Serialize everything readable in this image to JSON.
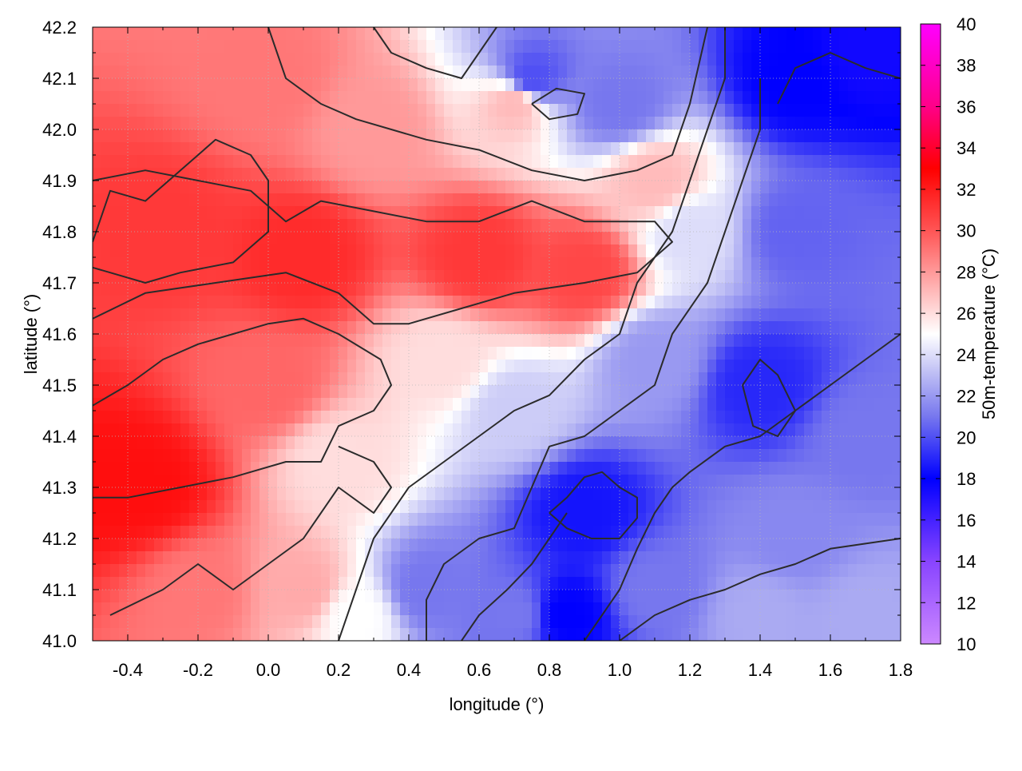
{
  "chart_data": {
    "type": "heatmap",
    "title": "",
    "xlabel": "longitude (°)",
    "ylabel": "latitude (°)",
    "colorbar_label": "50m-temperature (°C)",
    "xlim": [
      -0.5,
      1.8
    ],
    "ylim": [
      41.0,
      42.2
    ],
    "x_ticks": [
      "-0.4",
      "-0.2",
      "0.0",
      "0.2",
      "0.4",
      "0.6",
      "0.8",
      "1.0",
      "1.2",
      "1.4",
      "1.6",
      "1.8"
    ],
    "y_ticks": [
      "41.0",
      "41.1",
      "41.2",
      "41.3",
      "41.4",
      "41.5",
      "41.6",
      "41.7",
      "41.8",
      "41.9",
      "42.0",
      "42.1",
      "42.2"
    ],
    "colorbar_range": [
      10,
      40
    ],
    "colorbar_ticks": [
      "10",
      "12",
      "14",
      "16",
      "18",
      "20",
      "22",
      "24",
      "26",
      "28",
      "30",
      "32",
      "34",
      "36",
      "38",
      "40"
    ],
    "colormap": [
      {
        "value": 10,
        "color": "#cc88ff"
      },
      {
        "value": 14,
        "color": "#8844ff"
      },
      {
        "value": 18,
        "color": "#0000ff"
      },
      {
        "value": 21,
        "color": "#7777ee"
      },
      {
        "value": 23,
        "color": "#bbbbf4"
      },
      {
        "value": 25,
        "color": "#ffffff"
      },
      {
        "value": 27,
        "color": "#ffbbbb"
      },
      {
        "value": 30,
        "color": "#ff5555"
      },
      {
        "value": 33,
        "color": "#ff0000"
      },
      {
        "value": 36,
        "color": "#ff0088"
      },
      {
        "value": 40,
        "color": "#ff00ff"
      }
    ],
    "grid": true,
    "contour_interval": 2,
    "temperature_samples": [
      {
        "lon": -0.45,
        "lat": 41.3,
        "value": 32.5
      },
      {
        "lon": -0.35,
        "lat": 41.3,
        "value": 32.5
      },
      {
        "lon": -0.3,
        "lat": 41.8,
        "value": 31
      },
      {
        "lon": 0.1,
        "lat": 41.75,
        "value": 31.5
      },
      {
        "lon": 0.6,
        "lat": 41.75,
        "value": 31
      },
      {
        "lon": 0.9,
        "lat": 41.72,
        "value": 30.5
      },
      {
        "lon": 0.0,
        "lat": 41.5,
        "value": 29.5
      },
      {
        "lon": -0.2,
        "lat": 41.1,
        "value": 29
      },
      {
        "lon": 0.1,
        "lat": 41.1,
        "value": 27.5
      },
      {
        "lon": 0.2,
        "lat": 41.35,
        "value": 26
      },
      {
        "lon": 0.25,
        "lat": 41.05,
        "value": 25
      },
      {
        "lon": 0.45,
        "lat": 41.1,
        "value": 21
      },
      {
        "lon": 0.5,
        "lat": 41.55,
        "value": 26
      },
      {
        "lon": 0.7,
        "lat": 41.45,
        "value": 23.5
      },
      {
        "lon": 0.7,
        "lat": 41.05,
        "value": 21
      },
      {
        "lon": 0.9,
        "lat": 41.25,
        "value": 18.5
      },
      {
        "lon": 0.85,
        "lat": 41.05,
        "value": 18
      },
      {
        "lon": 0.3,
        "lat": 42.0,
        "value": 28
      },
      {
        "lon": 0.0,
        "lat": 42.1,
        "value": 29
      },
      {
        "lon": 0.7,
        "lat": 42.05,
        "value": 27
      },
      {
        "lon": 0.75,
        "lat": 42.1,
        "value": 20
      },
      {
        "lon": 1.0,
        "lat": 42.05,
        "value": 21
      },
      {
        "lon": 1.1,
        "lat": 41.9,
        "value": 27
      },
      {
        "lon": 1.2,
        "lat": 41.8,
        "value": 24
      },
      {
        "lon": 1.1,
        "lat": 41.55,
        "value": 22
      },
      {
        "lon": 1.4,
        "lat": 41.5,
        "value": 19
      },
      {
        "lon": 1.5,
        "lat": 41.8,
        "value": 20.5
      },
      {
        "lon": 1.5,
        "lat": 42.1,
        "value": 18
      },
      {
        "lon": 1.7,
        "lat": 42.15,
        "value": 17.5
      },
      {
        "lon": 1.5,
        "lat": 41.2,
        "value": 21.5
      },
      {
        "lon": 1.4,
        "lat": 41.05,
        "value": 22.5
      },
      {
        "lon": 1.7,
        "lat": 41.05,
        "value": 22.5
      },
      {
        "lon": 1.7,
        "lat": 41.4,
        "value": 21
      },
      {
        "lon": 1.1,
        "lat": 41.1,
        "value": 21
      }
    ],
    "contours": [
      [
        [
          -0.5,
          41.78
        ],
        [
          -0.45,
          41.88
        ],
        [
          -0.35,
          41.86
        ],
        [
          -0.25,
          41.92
        ],
        [
          -0.15,
          41.98
        ],
        [
          -0.05,
          41.95
        ],
        [
          0.0,
          41.9
        ],
        [
          0.0,
          41.8
        ],
        [
          -0.1,
          41.74
        ],
        [
          -0.25,
          41.72
        ],
        [
          -0.35,
          41.7
        ],
        [
          -0.45,
          41.72
        ],
        [
          -0.5,
          41.73
        ]
      ],
      [
        [
          -0.5,
          41.46
        ],
        [
          -0.4,
          41.5
        ],
        [
          -0.3,
          41.55
        ],
        [
          -0.2,
          41.58
        ],
        [
          -0.1,
          41.6
        ],
        [
          0.0,
          41.62
        ],
        [
          0.1,
          41.63
        ],
        [
          0.2,
          41.6
        ],
        [
          0.32,
          41.55
        ],
        [
          0.35,
          41.5
        ],
        [
          0.3,
          41.45
        ],
        [
          0.2,
          41.42
        ],
        [
          0.15,
          41.35
        ],
        [
          0.05,
          41.35
        ],
        [
          -0.1,
          41.32
        ],
        [
          -0.25,
          41.3
        ],
        [
          -0.4,
          41.28
        ],
        [
          -0.5,
          41.28
        ]
      ],
      [
        [
          -0.5,
          41.63
        ],
        [
          -0.35,
          41.68
        ],
        [
          -0.15,
          41.7
        ],
        [
          0.05,
          41.72
        ],
        [
          0.2,
          41.68
        ],
        [
          0.3,
          41.62
        ],
        [
          0.4,
          41.62
        ],
        [
          0.55,
          41.65
        ],
        [
          0.7,
          41.68
        ],
        [
          0.9,
          41.7
        ],
        [
          1.05,
          41.72
        ],
        [
          1.15,
          41.78
        ],
        [
          1.1,
          41.82
        ],
        [
          0.9,
          41.82
        ],
        [
          0.75,
          41.86
        ],
        [
          0.6,
          41.82
        ],
        [
          0.45,
          41.82
        ],
        [
          0.3,
          41.84
        ],
        [
          0.15,
          41.86
        ],
        [
          0.05,
          41.82
        ],
        [
          -0.05,
          41.88
        ],
        [
          -0.2,
          41.9
        ],
        [
          -0.35,
          41.92
        ],
        [
          -0.5,
          41.9
        ]
      ],
      [
        [
          -0.45,
          41.05
        ],
        [
          -0.3,
          41.1
        ],
        [
          -0.2,
          41.15
        ],
        [
          -0.1,
          41.1
        ],
        [
          0.0,
          41.15
        ],
        [
          0.1,
          41.2
        ],
        [
          0.15,
          41.25
        ],
        [
          0.2,
          41.3
        ],
        [
          0.3,
          41.25
        ],
        [
          0.35,
          41.3
        ],
        [
          0.3,
          41.35
        ],
        [
          0.2,
          41.38
        ]
      ],
      [
        [
          0.2,
          41.0
        ],
        [
          0.25,
          41.1
        ],
        [
          0.3,
          41.2
        ],
        [
          0.4,
          41.3
        ],
        [
          0.5,
          41.35
        ],
        [
          0.6,
          41.4
        ],
        [
          0.7,
          41.45
        ],
        [
          0.8,
          41.48
        ],
        [
          0.9,
          41.55
        ],
        [
          1.0,
          41.6
        ],
        [
          1.05,
          41.7
        ],
        [
          1.15,
          41.8
        ],
        [
          1.2,
          41.9
        ],
        [
          1.25,
          42.0
        ],
        [
          1.3,
          42.1
        ],
        [
          1.3,
          42.2
        ]
      ],
      [
        [
          0.45,
          41.0
        ],
        [
          0.45,
          41.08
        ],
        [
          0.5,
          41.15
        ],
        [
          0.6,
          41.2
        ],
        [
          0.7,
          41.22
        ],
        [
          0.75,
          41.3
        ],
        [
          0.8,
          41.38
        ],
        [
          0.9,
          41.4
        ],
        [
          1.0,
          41.45
        ],
        [
          1.1,
          41.5
        ],
        [
          1.15,
          41.6
        ],
        [
          1.25,
          41.7
        ],
        [
          1.3,
          41.8
        ],
        [
          1.35,
          41.9
        ],
        [
          1.4,
          42.0
        ],
        [
          1.4,
          42.1
        ]
      ],
      [
        [
          0.8,
          41.25
        ],
        [
          0.85,
          41.28
        ],
        [
          0.9,
          41.32
        ],
        [
          0.95,
          41.33
        ],
        [
          1.0,
          41.3
        ],
        [
          1.05,
          41.28
        ],
        [
          1.05,
          41.24
        ],
        [
          1.0,
          41.2
        ],
        [
          0.92,
          41.2
        ],
        [
          0.85,
          41.22
        ],
        [
          0.8,
          41.25
        ]
      ],
      [
        [
          0.55,
          41.0
        ],
        [
          0.6,
          41.05
        ],
        [
          0.68,
          41.1
        ],
        [
          0.75,
          41.15
        ],
        [
          0.8,
          41.2
        ],
        [
          0.85,
          41.25
        ]
      ],
      [
        [
          0.9,
          41.0
        ],
        [
          0.95,
          41.05
        ],
        [
          1.0,
          41.1
        ],
        [
          1.05,
          41.18
        ],
        [
          1.1,
          41.25
        ],
        [
          1.15,
          41.3
        ],
        [
          1.2,
          41.33
        ],
        [
          1.3,
          41.38
        ],
        [
          1.4,
          41.4
        ],
        [
          1.5,
          41.45
        ],
        [
          1.6,
          41.5
        ],
        [
          1.7,
          41.55
        ],
        [
          1.8,
          41.6
        ]
      ],
      [
        [
          1.0,
          41.0
        ],
        [
          1.1,
          41.05
        ],
        [
          1.2,
          41.08
        ],
        [
          1.3,
          41.1
        ],
        [
          1.4,
          41.13
        ],
        [
          1.5,
          41.15
        ],
        [
          1.6,
          41.18
        ],
        [
          1.7,
          41.19
        ],
        [
          1.8,
          41.2
        ]
      ],
      [
        [
          1.35,
          41.5
        ],
        [
          1.4,
          41.55
        ],
        [
          1.45,
          41.52
        ],
        [
          1.5,
          41.45
        ],
        [
          1.45,
          41.4
        ],
        [
          1.38,
          41.42
        ],
        [
          1.35,
          41.5
        ]
      ],
      [
        [
          0.75,
          42.05
        ],
        [
          0.82,
          42.08
        ],
        [
          0.9,
          42.07
        ],
        [
          0.88,
          42.03
        ],
        [
          0.8,
          42.02
        ],
        [
          0.75,
          42.05
        ]
      ],
      [
        [
          1.45,
          42.05
        ],
        [
          1.5,
          42.12
        ],
        [
          1.6,
          42.15
        ],
        [
          1.7,
          42.12
        ],
        [
          1.8,
          42.1
        ]
      ],
      [
        [
          0.3,
          42.2
        ],
        [
          0.35,
          42.15
        ],
        [
          0.45,
          42.12
        ],
        [
          0.55,
          42.1
        ],
        [
          0.6,
          42.15
        ],
        [
          0.65,
          42.2
        ]
      ],
      [
        [
          0.0,
          42.2
        ],
        [
          0.05,
          42.1
        ],
        [
          0.15,
          42.05
        ],
        [
          0.25,
          42.02
        ],
        [
          0.35,
          42.0
        ],
        [
          0.45,
          41.98
        ],
        [
          0.6,
          41.96
        ],
        [
          0.75,
          41.92
        ],
        [
          0.9,
          41.9
        ],
        [
          1.05,
          41.92
        ],
        [
          1.15,
          41.95
        ],
        [
          1.2,
          42.05
        ],
        [
          1.25,
          42.2
        ]
      ]
    ]
  }
}
